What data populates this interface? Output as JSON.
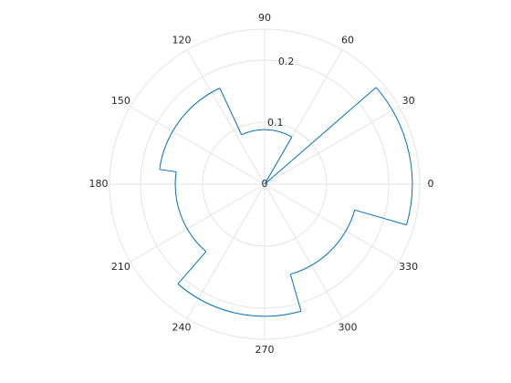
{
  "chart_data": {
    "type": "polar_histogram",
    "bin_edges": [
      -16,
      41,
      60,
      115,
      172,
      229,
      286,
      344
    ],
    "values": [
      0.238,
      0,
      0.088,
      0.171,
      0.144,
      0.213,
      0.151
    ],
    "color": "#0072bd",
    "rlim": [
      0,
      0.25
    ],
    "rticks": [
      0,
      0.1,
      0.2
    ],
    "thetaticks": [
      0,
      30,
      60,
      90,
      120,
      150,
      180,
      210,
      240,
      270,
      300,
      330
    ],
    "grid": true
  }
}
